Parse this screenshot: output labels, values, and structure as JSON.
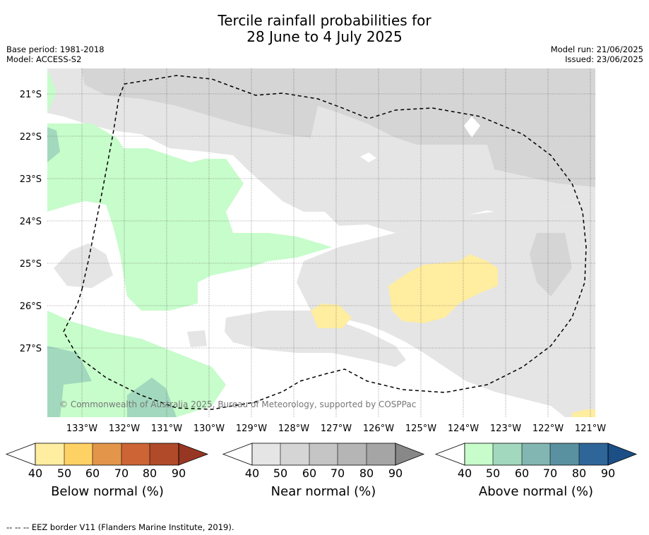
{
  "title_line1": "Tercile rainfall probabilities for",
  "title_line2": "28 June to 4 July 2025",
  "meta_left": [
    "Base period: 1981-2018",
    "Model: ACCESS-S2"
  ],
  "meta_right": [
    "Model run: 21/06/2025",
    "Issued: 23/06/2025"
  ],
  "lat_labels": [
    "21°S",
    "22°S",
    "23°S",
    "24°S",
    "25°S",
    "26°S",
    "27°S"
  ],
  "lon_labels": [
    "133°W",
    "132°W",
    "131°W",
    "130°W",
    "129°W",
    "128°W",
    "127°W",
    "126°W",
    "125°W",
    "124°W",
    "123°W",
    "122°W",
    "121°W"
  ],
  "copyright": "© Commonwealth of Australia 2025, Bureau of Meteorology, supported by COSPPac",
  "colorbars": [
    {
      "label": "Below normal (%)",
      "ticks": [
        "40",
        "50",
        "60",
        "70",
        "80",
        "90"
      ],
      "colors": [
        "#ffeda0",
        "#fed165",
        "#e3964a",
        "#cc6436",
        "#b04a28",
        "#973622"
      ]
    },
    {
      "label": "Near normal (%)",
      "ticks": [
        "40",
        "50",
        "60",
        "70",
        "80",
        "90"
      ],
      "colors": [
        "#e5e5e5",
        "#d5d5d5",
        "#c5c5c5",
        "#b5b5b5",
        "#a5a5a5",
        "#888888"
      ]
    },
    {
      "label": "Above normal (%)",
      "ticks": [
        "40",
        "50",
        "60",
        "70",
        "80",
        "90"
      ],
      "colors": [
        "#c7fccb",
        "#a2d8bd",
        "#82b6b2",
        "#5a91a1",
        "#2e6699",
        "#1b4f86"
      ]
    }
  ],
  "footer": "--  --  -- EEZ border V11 (Flanders Marine Institute, 2019)."
}
